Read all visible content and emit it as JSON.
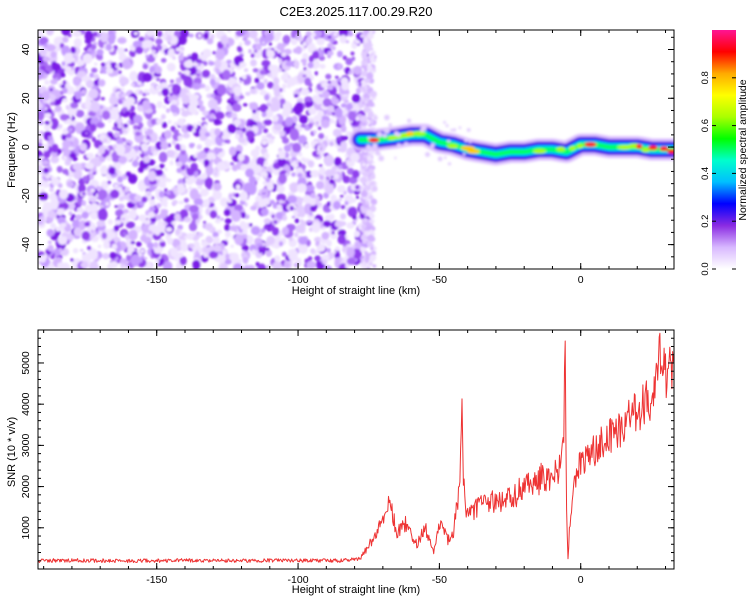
{
  "figure_title": "C2E3.2025.117.00.29.R20",
  "chart_data": [
    {
      "type": "heatmap",
      "xlabel": "Height of straight line (km)",
      "ylabel": "Frequency (Hz)",
      "xlim": [
        -192,
        33
      ],
      "ylim": [
        -50,
        48
      ],
      "x_ticks": [
        -150,
        -100,
        -50,
        0
      ],
      "y_ticks": [
        -40,
        -20,
        0,
        20,
        40
      ],
      "colorbar": {
        "label": "Normalized spectral amplitude",
        "range": [
          0,
          1
        ],
        "ticks": [
          0.0,
          0.2,
          0.4,
          0.6,
          0.8
        ],
        "colormap": [
          "#ffffff",
          "#d8b8ff",
          "#8a2be2",
          "#0000ff",
          "#00bfff",
          "#00ffcc",
          "#00ff00",
          "#aaff00",
          "#ffff00",
          "#ffaa00",
          "#ff0000",
          "#ff1493"
        ]
      },
      "noise_region": {
        "x_range": [
          -192,
          -75
        ],
        "y_range": [
          -50,
          48
        ]
      },
      "signal_ridge": {
        "x": [
          -78,
          -72,
          -65,
          -60,
          -55,
          -50,
          -45,
          -40,
          -35,
          -30,
          -25,
          -20,
          -15,
          -10,
          -5,
          0,
          5,
          10,
          15,
          20,
          25,
          30,
          33
        ],
        "y": [
          3,
          3,
          4,
          5,
          5,
          2,
          1,
          -1,
          -2,
          -3,
          -2,
          -2,
          -1,
          -1,
          -2,
          1,
          1,
          0,
          0,
          0,
          -1,
          -1,
          -1
        ]
      }
    },
    {
      "type": "line",
      "xlabel": "Height of straight line (km)",
      "ylabel": "SNR (10 * v/v)",
      "xlim": [
        -192,
        33
      ],
      "ylim": [
        0,
        5800
      ],
      "x_ticks": [
        -150,
        -100,
        -50,
        0
      ],
      "y_ticks": [
        1000,
        2000,
        3000,
        4000,
        5000
      ],
      "series": [
        {
          "color": "#ee3333",
          "x": [
            -192,
            -180,
            -160,
            -140,
            -120,
            -100,
            -85,
            -78,
            -72,
            -68,
            -65,
            -62,
            -58,
            -55,
            -52,
            -50,
            -47,
            -45,
            -43,
            -42,
            -41.5,
            -40,
            -38,
            -35,
            -30,
            -25,
            -20,
            -15,
            -10,
            -7,
            -6,
            -5.5,
            -5,
            -4.5,
            -4,
            -2,
            0,
            5,
            10,
            15,
            20,
            25,
            28,
            30,
            33
          ],
          "y": [
            200,
            210,
            200,
            210,
            200,
            210,
            200,
            250,
            900,
            1700,
            900,
            1100,
            600,
            1000,
            450,
            1100,
            700,
            900,
            2000,
            3500,
            2000,
            1300,
            1450,
            1550,
            1650,
            1750,
            1950,
            2150,
            2300,
            2600,
            3300,
            5500,
            1500,
            250,
            900,
            2200,
            2600,
            2900,
            3200,
            3500,
            3800,
            4200,
            5200,
            4800,
            5000
          ]
        }
      ]
    }
  ]
}
